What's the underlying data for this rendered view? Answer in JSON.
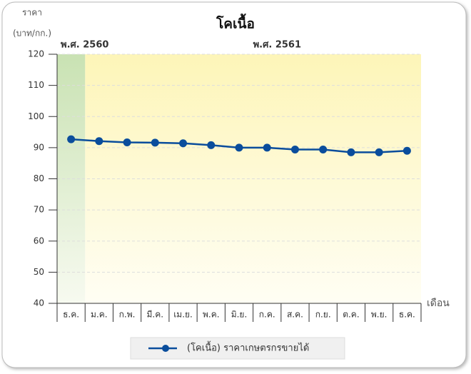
{
  "chart_data": {
    "type": "line",
    "title": "โคเนื้อ",
    "y_label": [
      "ราคา",
      "(บาท/กก.)"
    ],
    "x_label": "เดือน",
    "annotations": [
      {
        "text": "พ.ศ. 2560",
        "color": "#5a9a2a"
      },
      {
        "text": "พ.ศ. 2561",
        "color": "#c89a10"
      }
    ],
    "categories": [
      "ธ.ค.",
      "ม.ค.",
      "ก.พ.",
      "มี.ค.",
      "เม.ย.",
      "พ.ค.",
      "มิ.ย.",
      "ก.ค.",
      "ส.ค.",
      "ก.ย.",
      "ต.ค.",
      "พ.ย.",
      "ธ.ค."
    ],
    "series": [
      {
        "name": "(โคเนื้อ) ราคาเกษตรกรขายได้",
        "color": "#0a4d9c",
        "values": [
          92.7,
          92.1,
          91.7,
          91.6,
          91.4,
          90.8,
          90.0,
          90.0,
          89.4,
          89.4,
          88.5,
          88.5,
          89.0
        ]
      }
    ],
    "ylim": [
      40,
      120
    ],
    "yticks": [
      40,
      50,
      60,
      70,
      80,
      90,
      100,
      110,
      120
    ],
    "grid": true
  }
}
